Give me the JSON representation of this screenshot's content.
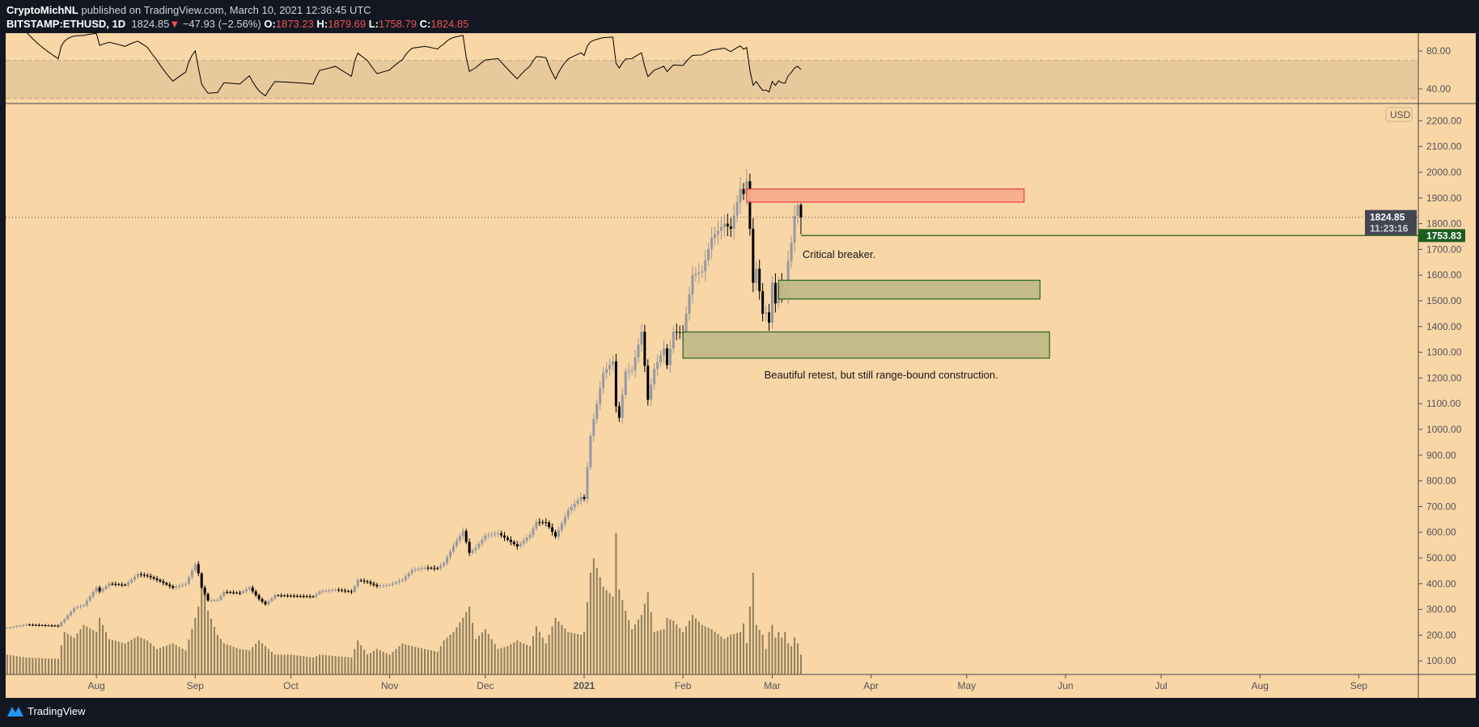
{
  "header": {
    "author": "CryptoMichNL",
    "published": "published on TradingView.com, March 10, 2021 12:36:45 UTC",
    "symbol": "BITSTAMP:ETHUSD, 1D",
    "last": "1824.85",
    "change": "−47.93 (−2.56%)",
    "o_label": "O:",
    "o": "1873.23",
    "h_label": "H:",
    "h": "1879.69",
    "l_label": "L:",
    "l": "1758.79",
    "c_label": "C:",
    "c": "1824.85"
  },
  "footer": {
    "brand": "TradingView"
  },
  "colors": {
    "background": "#131722",
    "chart_bg": "#f9d6a5",
    "up_candle": "#9598a1",
    "down_candle": "#000000",
    "volume": "#7d7050",
    "rsi_band": "#e8c99c",
    "resistance_fill": "#f7ae8a",
    "resistance_border": "#f23645",
    "support_fill": "#c2ba88",
    "support_border": "#1b5e20",
    "price_label_bg": "#434651",
    "level_label_bg": "#1b5e20"
  },
  "chart_data": {
    "type": "candlestick",
    "currency_badge": "USD",
    "y_scale": "linear",
    "ylim": [
      50,
      2250
    ],
    "y_ticks": [
      "100.00",
      "200.00",
      "300.00",
      "400.00",
      "500.00",
      "600.00",
      "700.00",
      "800.00",
      "900.00",
      "1000.00",
      "1100.00",
      "1200.00",
      "1300.00",
      "1400.00",
      "1500.00",
      "1600.00",
      "1700.00",
      "1800.00",
      "1900.00",
      "2000.00",
      "2100.00",
      "2200.00"
    ],
    "x_ticks": [
      {
        "label": "Aug",
        "date": "2020-08-01"
      },
      {
        "label": "Sep",
        "date": "2020-09-01"
      },
      {
        "label": "Oct",
        "date": "2020-10-01"
      },
      {
        "label": "Nov",
        "date": "2020-11-01"
      },
      {
        "label": "Dec",
        "date": "2020-12-01"
      },
      {
        "label": "2021",
        "date": "2021-01-01"
      },
      {
        "label": "Feb",
        "date": "2021-02-01"
      },
      {
        "label": "Mar",
        "date": "2021-03-01"
      },
      {
        "label": "Apr",
        "date": "2021-04-01"
      },
      {
        "label": "May",
        "date": "2021-05-01"
      },
      {
        "label": "Jun",
        "date": "2021-06-01"
      },
      {
        "label": "Jul",
        "date": "2021-07-01"
      },
      {
        "label": "Aug",
        "date": "2021-08-01"
      },
      {
        "label": "Sep",
        "date": "2021-09-01"
      }
    ],
    "x_range": [
      "2020-07-03",
      "2021-09-30"
    ],
    "close_series": [
      [
        "2020-07-04",
        228,
        14
      ],
      [
        "2020-07-10",
        241,
        12
      ],
      [
        "2020-07-20",
        236,
        11
      ],
      [
        "2020-07-22",
        263,
        30
      ],
      [
        "2020-07-25",
        305,
        26
      ],
      [
        "2020-07-28",
        317,
        35
      ],
      [
        "2020-08-01",
        385,
        30
      ],
      [
        "2020-08-02",
        370,
        40
      ],
      [
        "2020-08-05",
        400,
        25
      ],
      [
        "2020-08-10",
        395,
        22
      ],
      [
        "2020-08-14",
        437,
        27
      ],
      [
        "2020-08-17",
        430,
        24
      ],
      [
        "2020-08-20",
        415,
        18
      ],
      [
        "2020-08-25",
        384,
        22
      ],
      [
        "2020-08-29",
        400,
        17
      ],
      [
        "2020-09-01",
        476,
        40
      ],
      [
        "2020-09-02",
        440,
        48
      ],
      [
        "2020-09-03",
        385,
        70
      ],
      [
        "2020-09-05",
        335,
        45
      ],
      [
        "2020-09-08",
        337,
        28
      ],
      [
        "2020-09-10",
        368,
        22
      ],
      [
        "2020-09-15",
        364,
        18
      ],
      [
        "2020-09-18",
        385,
        17
      ],
      [
        "2020-09-21",
        340,
        24
      ],
      [
        "2020-09-23",
        320,
        20
      ],
      [
        "2020-09-26",
        355,
        14
      ],
      [
        "2020-10-01",
        353,
        14
      ],
      [
        "2020-10-08",
        350,
        12
      ],
      [
        "2020-10-10",
        370,
        14
      ],
      [
        "2020-10-15",
        377,
        13
      ],
      [
        "2020-10-20",
        368,
        12
      ],
      [
        "2020-10-22",
        414,
        24
      ],
      [
        "2020-10-25",
        406,
        14
      ],
      [
        "2020-10-28",
        390,
        18
      ],
      [
        "2020-11-01",
        396,
        14
      ],
      [
        "2020-11-05",
        415,
        22
      ],
      [
        "2020-11-08",
        453,
        20
      ],
      [
        "2020-11-12",
        462,
        18
      ],
      [
        "2020-11-16",
        460,
        16
      ],
      [
        "2020-11-18",
        480,
        24
      ],
      [
        "2020-11-21",
        548,
        30
      ],
      [
        "2020-11-24",
        605,
        40
      ],
      [
        "2020-11-26",
        520,
        48
      ],
      [
        "2020-11-28",
        540,
        25
      ],
      [
        "2020-12-01",
        587,
        32
      ],
      [
        "2020-12-05",
        596,
        18
      ],
      [
        "2020-12-08",
        571,
        20
      ],
      [
        "2020-12-11",
        545,
        24
      ],
      [
        "2020-12-15",
        590,
        20
      ],
      [
        "2020-12-17",
        640,
        34
      ],
      [
        "2020-12-20",
        638,
        22
      ],
      [
        "2020-12-23",
        583,
        40
      ],
      [
        "2020-12-27",
        685,
        30
      ],
      [
        "2020-12-31",
        737,
        28
      ],
      [
        "2021-01-01",
        730,
        30
      ],
      [
        "2021-01-03",
        975,
        72
      ],
      [
        "2021-01-04",
        1040,
        82
      ],
      [
        "2021-01-07",
        1220,
        62
      ],
      [
        "2021-01-10",
        1265,
        55
      ],
      [
        "2021-01-11",
        1090,
        100
      ],
      [
        "2021-01-12",
        1045,
        60
      ],
      [
        "2021-01-14",
        1225,
        45
      ],
      [
        "2021-01-16",
        1230,
        32
      ],
      [
        "2021-01-19",
        1380,
        42
      ],
      [
        "2021-01-21",
        1115,
        58
      ],
      [
        "2021-01-23",
        1235,
        30
      ],
      [
        "2021-01-26",
        1315,
        32
      ],
      [
        "2021-01-27",
        1250,
        40
      ],
      [
        "2021-01-29",
        1380,
        38
      ],
      [
        "2021-02-01",
        1375,
        30
      ],
      [
        "2021-02-04",
        1600,
        42
      ],
      [
        "2021-02-07",
        1615,
        35
      ],
      [
        "2021-02-10",
        1745,
        32
      ],
      [
        "2021-02-14",
        1800,
        25
      ],
      [
        "2021-02-16",
        1780,
        28
      ],
      [
        "2021-02-19",
        1935,
        30
      ],
      [
        "2021-02-20",
        1915,
        36
      ],
      [
        "2021-02-21",
        1965,
        22
      ],
      [
        "2021-02-22",
        1780,
        48
      ],
      [
        "2021-02-23",
        1570,
        72
      ],
      [
        "2021-02-24",
        1625,
        35
      ],
      [
        "2021-02-26",
        1450,
        28
      ],
      [
        "2021-02-27",
        1455,
        18
      ],
      [
        "2021-02-28",
        1415,
        30
      ],
      [
        "2021-03-01",
        1570,
        35
      ],
      [
        "2021-03-02",
        1490,
        26
      ],
      [
        "2021-03-03",
        1570,
        30
      ],
      [
        "2021-03-04",
        1530,
        26
      ],
      [
        "2021-03-05",
        1525,
        30
      ],
      [
        "2021-03-06",
        1655,
        22
      ],
      [
        "2021-03-07",
        1725,
        20
      ],
      [
        "2021-03-08",
        1830,
        26
      ],
      [
        "2021-03-09",
        1873.23,
        22
      ],
      [
        "2021-03-10",
        1824.85,
        14
      ]
    ],
    "last_candle": {
      "open": 1873.23,
      "high": 1879.69,
      "low": 1758.79,
      "close": 1824.85
    },
    "last_price_label": "1824.85",
    "countdown_label": "11:23:16",
    "level_line": {
      "price": 1753.83,
      "label": "1753.83",
      "start": "2021-03-10"
    },
    "zones": [
      {
        "kind": "resistance",
        "from": "2021-02-21",
        "to": "2021-05-19",
        "top": 1935,
        "bottom": 1884
      },
      {
        "kind": "support",
        "from": "2021-03-03",
        "to": "2021-05-24",
        "top": 1580,
        "bottom": 1507
      },
      {
        "kind": "support",
        "from": "2021-02-01",
        "to": "2021-05-27",
        "top": 1379,
        "bottom": 1277
      }
    ],
    "annotations": [
      {
        "text": "Critical breaker.",
        "date": "2021-03-10",
        "price": 1680
      },
      {
        "text": "Beautiful retest, but still range-bound construction.",
        "date": "2021-02-26",
        "price": 1210
      }
    ],
    "rsi": {
      "length": 14,
      "ticks": [
        "80.00",
        "40.00"
      ],
      "band": [
        30,
        70
      ],
      "ylim": [
        15,
        100
      ]
    }
  }
}
